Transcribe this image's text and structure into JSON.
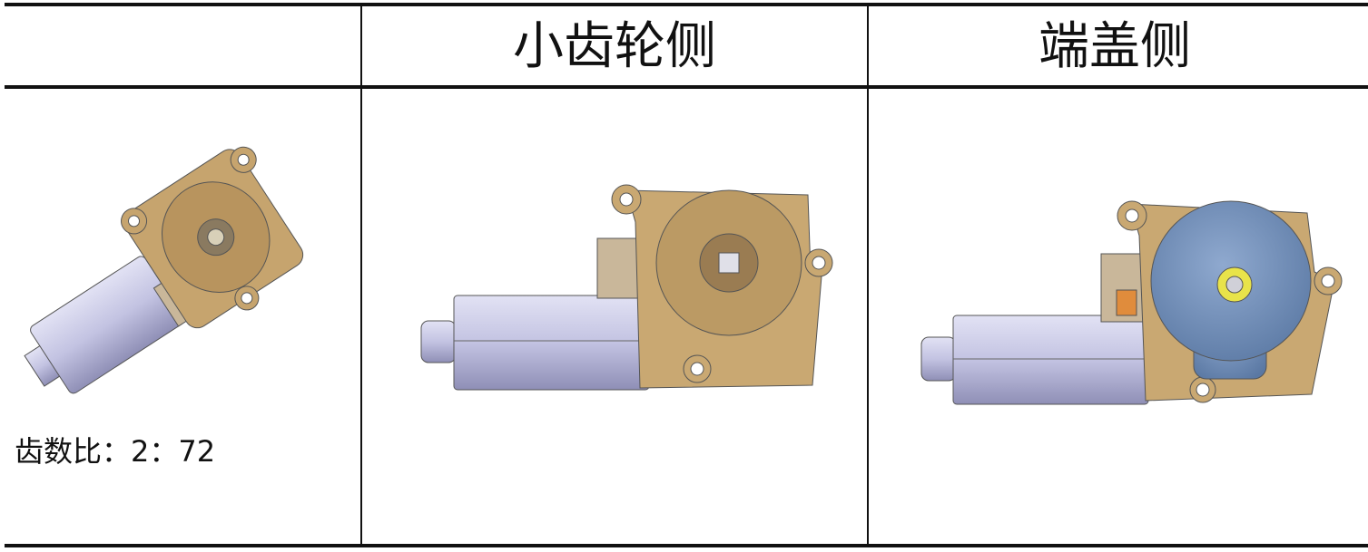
{
  "table": {
    "header": [
      "小齿轮侧",
      "端盖侧"
    ],
    "rows": [
      [
        "齿数比：2：72"
      ]
    ]
  }
}
